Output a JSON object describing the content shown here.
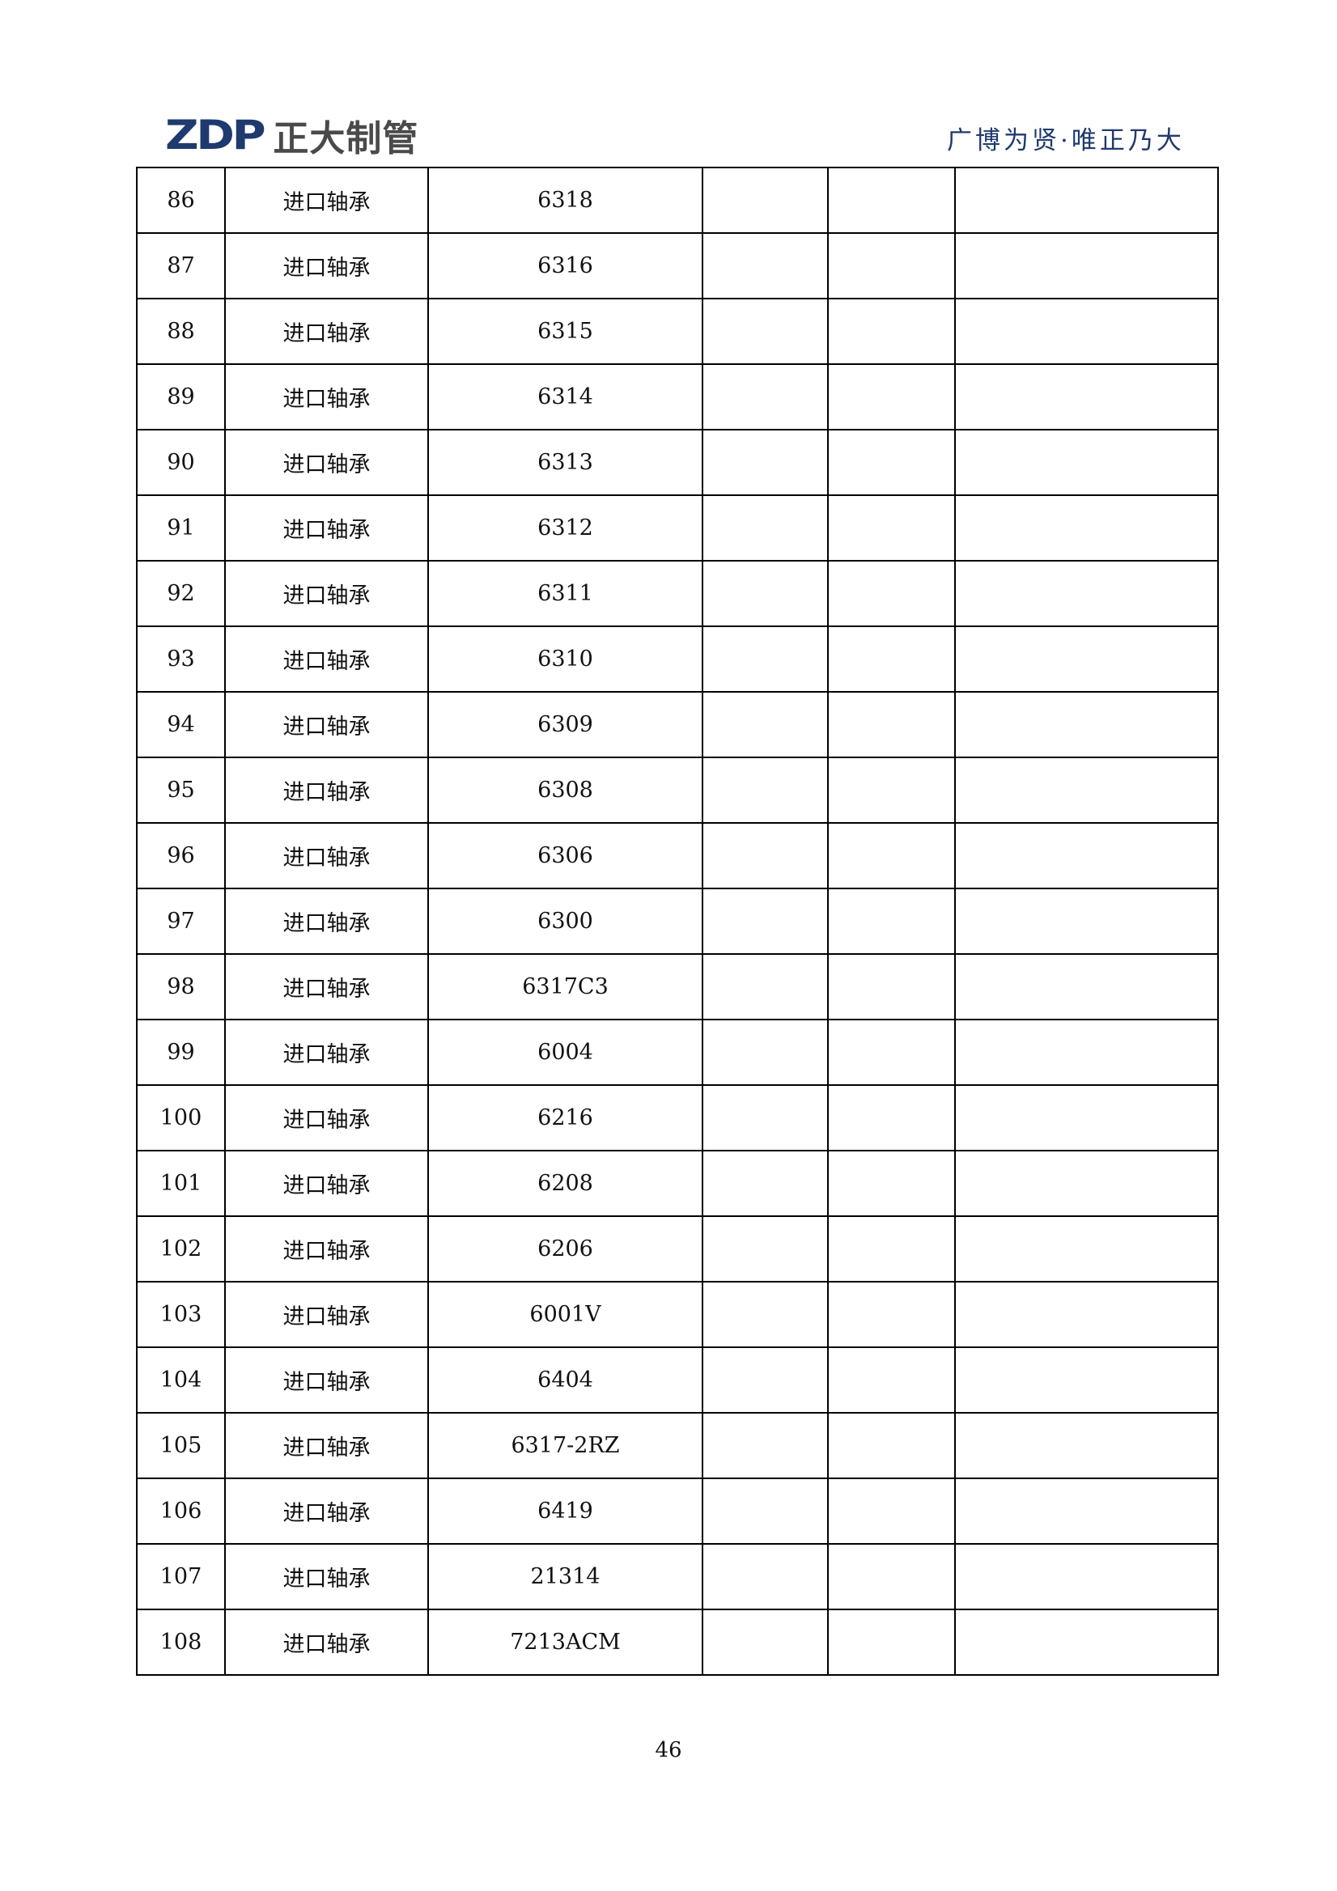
{
  "header": {
    "logo_mark": "ZDP",
    "logo_text": "正大制管",
    "tagline": "广博为贤·唯正乃大",
    "brand_color": "#1f3a6e"
  },
  "table": {
    "rows": [
      [
        "86",
        "进口轴承",
        "6318"
      ],
      [
        "87",
        "进口轴承",
        "6316"
      ],
      [
        "88",
        "进口轴承",
        "6315"
      ],
      [
        "89",
        "进口轴承",
        "6314"
      ],
      [
        "90",
        "进口轴承",
        "6313"
      ],
      [
        "91",
        "进口轴承",
        "6312"
      ],
      [
        "92",
        "进口轴承",
        "6311"
      ],
      [
        "93",
        "进口轴承",
        "6310"
      ],
      [
        "94",
        "进口轴承",
        "6309"
      ],
      [
        "95",
        "进口轴承",
        "6308"
      ],
      [
        "96",
        "进口轴承",
        "6306"
      ],
      [
        "97",
        "进口轴承",
        "6300"
      ],
      [
        "98",
        "进口轴承",
        "6317C3"
      ],
      [
        "99",
        "进口轴承",
        "6004"
      ],
      [
        "100",
        "进口轴承",
        "6216"
      ],
      [
        "101",
        "进口轴承",
        "6208"
      ],
      [
        "102",
        "进口轴承",
        "6206"
      ],
      [
        "103",
        "进口轴承",
        "6001V"
      ],
      [
        "104",
        "进口轴承",
        "6404"
      ],
      [
        "105",
        "进口轴承",
        "6317-2RZ"
      ],
      [
        "106",
        "进口轴承",
        "6419"
      ],
      [
        "107",
        "进口轴承",
        "21314"
      ],
      [
        "108",
        "进口轴承",
        "7213ACM"
      ]
    ]
  },
  "footer": {
    "page_number": "46"
  }
}
